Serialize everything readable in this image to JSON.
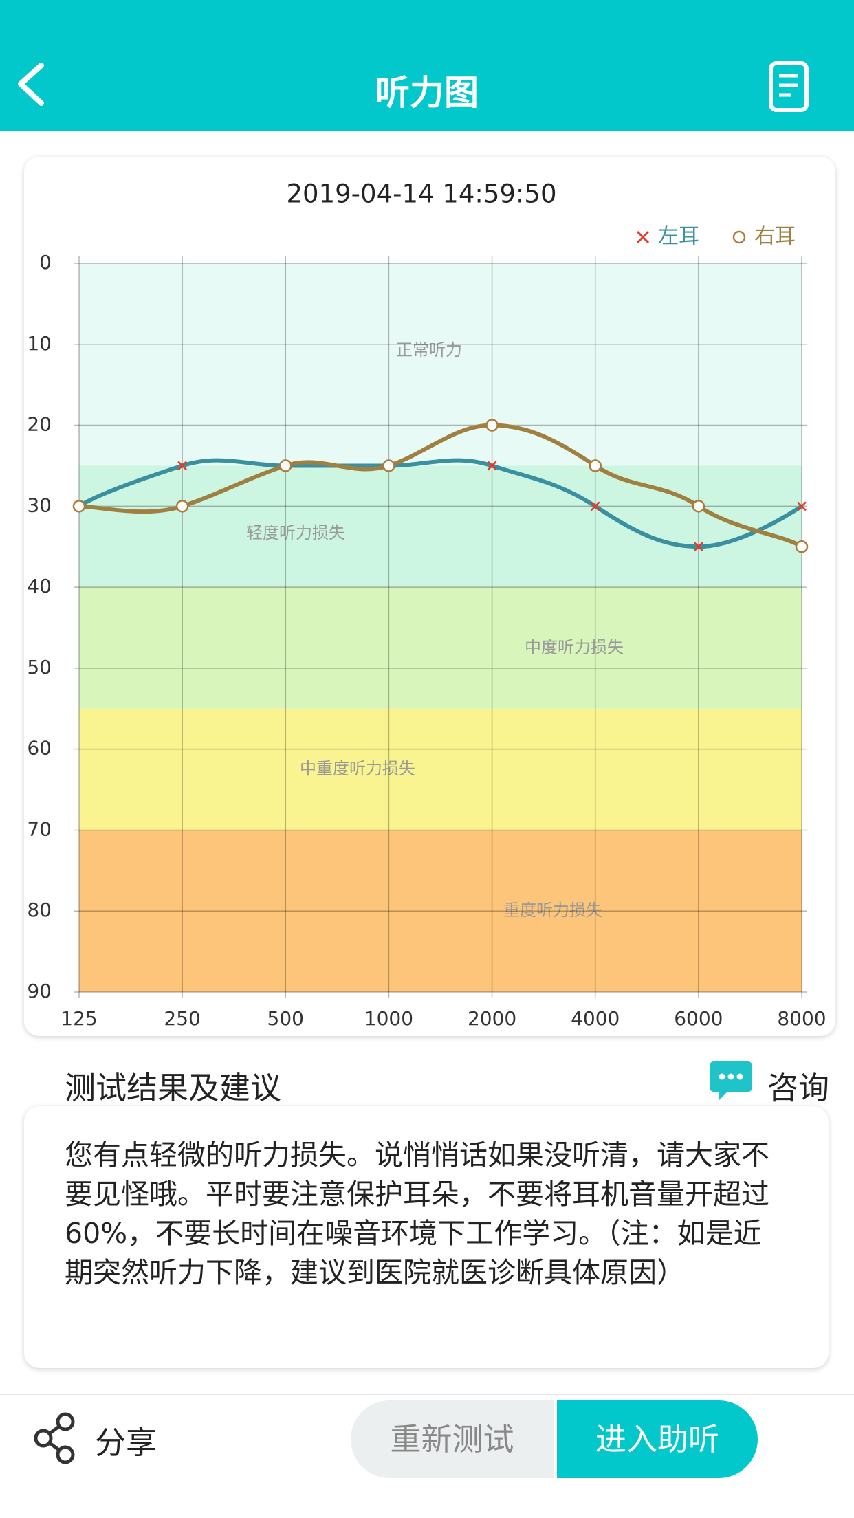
{
  "header": {
    "title": "听力图"
  },
  "chart_data": {
    "type": "line",
    "title": "2019-04-14 14:59:50",
    "categories": [
      "125",
      "250",
      "500",
      "1000",
      "2000",
      "4000",
      "6000",
      "8000"
    ],
    "series": [
      {
        "name": "左耳",
        "color": "#3a90a0",
        "marker": "x",
        "marker_color": "#e8382a",
        "values": [
          30,
          25,
          25,
          25,
          25,
          30,
          35,
          30
        ]
      },
      {
        "name": "右耳",
        "color": "#a08040",
        "marker": "circle",
        "marker_color": "#b07a3a",
        "values": [
          30,
          30,
          25,
          25,
          20,
          25,
          30,
          35
        ]
      }
    ],
    "ylim": [
      0,
      90
    ],
    "y_inverted": true,
    "yticks": [
      0,
      10,
      20,
      30,
      40,
      50,
      60,
      70,
      80,
      90
    ],
    "grid": true,
    "legend": "top-right",
    "bands": [
      {
        "from": 0,
        "to": 25,
        "label": "正常听力",
        "color": "#e8faf5"
      },
      {
        "from": 25,
        "to": 40,
        "label": "轻度听力损失",
        "color": "#cdf6e2"
      },
      {
        "from": 40,
        "to": 55,
        "label": "中度听力损失",
        "color": "#d8f5bb"
      },
      {
        "from": 55,
        "to": 70,
        "label": "中重度听力损失",
        "color": "#f9f490"
      },
      {
        "from": 70,
        "to": 90,
        "label": "重度听力损失",
        "color": "#fdc57a"
      }
    ]
  },
  "advice": {
    "heading": "测试结果及建议",
    "consult": "咨询",
    "text": "您有点轻微的听力损失。说悄悄话如果没听清，请大家不要见怪哦。平时要注意保护耳朵，不要将耳机音量开超过60%，不要长时间在噪音环境下工作学习。（注：如是近期突然听力下降，建议到医院就医诊断具体原因）"
  },
  "footer": {
    "share": "分享",
    "retest": "重新测试",
    "enter": "进入助听"
  }
}
